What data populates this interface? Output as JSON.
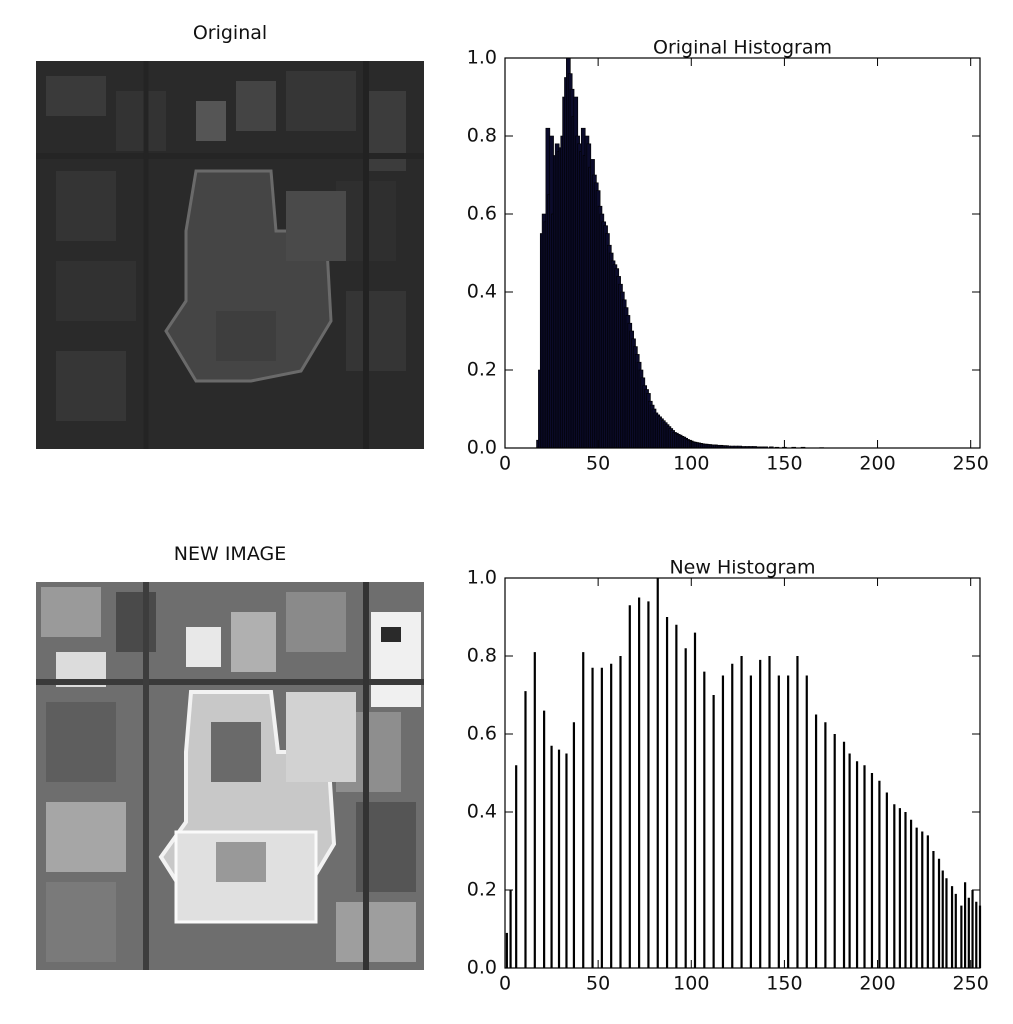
{
  "panels": {
    "original_title": "Original",
    "new_title": "NEW IMAGE"
  },
  "chart_data": [
    {
      "type": "bar",
      "title": "Original Histogram",
      "xlabel": "",
      "ylabel": "",
      "xlim": [
        0,
        255
      ],
      "ylim": [
        0.0,
        1.0
      ],
      "xticks": [
        0,
        50,
        100,
        150,
        200,
        250
      ],
      "yticks": [
        "0.0",
        "0.2",
        "0.4",
        "0.6",
        "0.8",
        "1.0"
      ],
      "grid": false,
      "x": [
        18,
        19,
        20,
        21,
        22,
        23,
        24,
        25,
        26,
        27,
        28,
        29,
        30,
        31,
        32,
        33,
        34,
        35,
        36,
        37,
        38,
        39,
        40,
        41,
        42,
        43,
        44,
        45,
        46,
        47,
        48,
        49,
        50,
        51,
        52,
        53,
        54,
        55,
        56,
        57,
        58,
        59,
        60,
        61,
        62,
        63,
        64,
        65,
        66,
        67,
        68,
        69,
        70,
        71,
        72,
        73,
        74,
        75,
        76,
        77,
        78,
        79,
        80,
        81,
        82,
        83,
        84,
        85,
        86,
        87,
        88,
        89,
        90,
        91,
        92,
        93,
        94,
        95,
        96,
        97,
        98,
        99,
        100,
        101,
        102,
        103,
        104,
        105,
        106,
        107,
        108,
        109,
        110,
        111,
        112,
        113,
        114,
        115,
        116,
        117,
        118,
        119,
        120,
        122,
        124,
        126,
        128,
        130,
        132,
        134,
        136,
        138,
        140,
        143,
        146,
        150,
        155,
        160,
        170
      ],
      "values": [
        0.02,
        0.2,
        0.55,
        0.6,
        0.58,
        0.82,
        0.65,
        0.8,
        0.6,
        0.75,
        0.78,
        0.76,
        0.77,
        0.8,
        0.9,
        0.95,
        1.0,
        0.96,
        0.92,
        0.85,
        0.9,
        0.8,
        0.78,
        0.76,
        0.82,
        0.75,
        0.8,
        0.78,
        0.72,
        0.74,
        0.7,
        0.68,
        0.66,
        0.62,
        0.6,
        0.58,
        0.57,
        0.55,
        0.52,
        0.5,
        0.48,
        0.47,
        0.46,
        0.44,
        0.42,
        0.4,
        0.38,
        0.36,
        0.34,
        0.32,
        0.3,
        0.28,
        0.26,
        0.24,
        0.22,
        0.2,
        0.18,
        0.16,
        0.15,
        0.14,
        0.12,
        0.11,
        0.1,
        0.09,
        0.085,
        0.08,
        0.075,
        0.07,
        0.065,
        0.06,
        0.055,
        0.05,
        0.045,
        0.04,
        0.038,
        0.035,
        0.033,
        0.03,
        0.028,
        0.025,
        0.022,
        0.02,
        0.018,
        0.016,
        0.015,
        0.014,
        0.013,
        0.012,
        0.011,
        0.01,
        0.01,
        0.009,
        0.009,
        0.008,
        0.008,
        0.008,
        0.007,
        0.007,
        0.007,
        0.006,
        0.006,
        0.006,
        0.005,
        0.005,
        0.005,
        0.005,
        0.004,
        0.004,
        0.004,
        0.004,
        0.003,
        0.003,
        0.003,
        0.003,
        0.002,
        0.002,
        0.002,
        0.002,
        0.001
      ]
    },
    {
      "type": "bar",
      "title": "New Histogram",
      "xlabel": "",
      "ylabel": "",
      "xlim": [
        0,
        255
      ],
      "ylim": [
        0.0,
        1.0
      ],
      "xticks": [
        0,
        50,
        100,
        150,
        200,
        250
      ],
      "yticks": [
        "0.0",
        "0.2",
        "0.4",
        "0.6",
        "0.8",
        "1.0"
      ],
      "grid": false,
      "x": [
        1,
        3,
        6,
        11,
        16,
        21,
        25,
        29,
        33,
        37,
        42,
        47,
        52,
        57,
        62,
        67,
        72,
        77,
        82,
        87,
        92,
        97,
        102,
        107,
        112,
        117,
        122,
        127,
        132,
        137,
        142,
        147,
        152,
        157,
        162,
        167,
        172,
        177,
        182,
        185,
        189,
        193,
        197,
        201,
        205,
        209,
        212,
        215,
        218,
        221,
        224,
        227,
        230,
        233,
        235,
        237,
        240,
        242,
        245,
        247,
        249,
        251,
        253,
        255
      ],
      "values": [
        0.09,
        0.2,
        0.52,
        0.71,
        0.81,
        0.66,
        0.57,
        0.56,
        0.55,
        0.63,
        0.81,
        0.77,
        0.77,
        0.78,
        0.8,
        0.93,
        0.95,
        0.94,
        1.0,
        0.9,
        0.88,
        0.82,
        0.86,
        0.76,
        0.7,
        0.75,
        0.78,
        0.8,
        0.75,
        0.79,
        0.8,
        0.75,
        0.75,
        0.8,
        0.75,
        0.65,
        0.63,
        0.6,
        0.58,
        0.55,
        0.53,
        0.52,
        0.5,
        0.48,
        0.45,
        0.42,
        0.41,
        0.4,
        0.38,
        0.36,
        0.35,
        0.34,
        0.3,
        0.28,
        0.25,
        0.23,
        0.21,
        0.19,
        0.16,
        0.22,
        0.18,
        0.2,
        0.17,
        0.16
      ]
    }
  ]
}
